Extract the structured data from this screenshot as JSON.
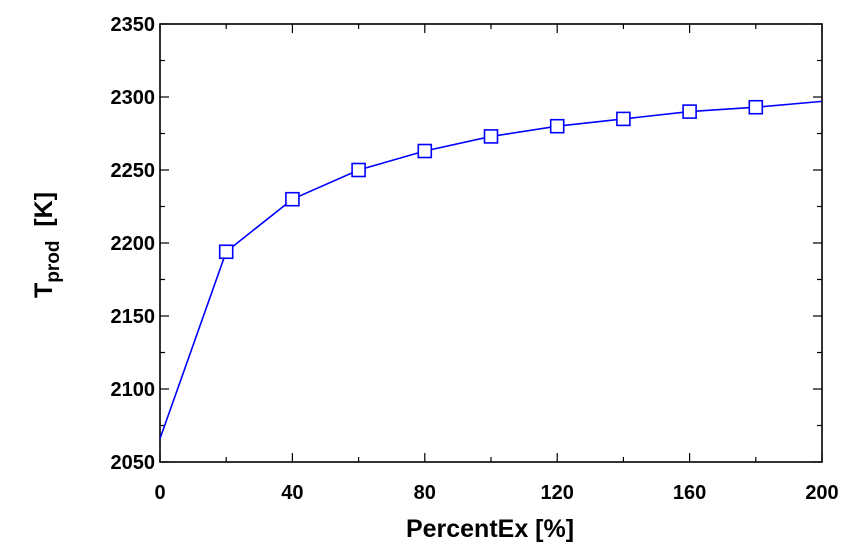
{
  "chart_data": {
    "type": "line",
    "title": "",
    "xlabel": "PercentEx  [%]",
    "ylabel": {
      "main": "T",
      "subscript": "prod",
      "unit": "  [K]"
    },
    "xlim": [
      0,
      200
    ],
    "ylim": [
      2050,
      2350
    ],
    "xticks": [
      0,
      40,
      80,
      120,
      160,
      200
    ],
    "yticks": [
      2050,
      2100,
      2150,
      2200,
      2250,
      2300,
      2350
    ],
    "x_minor_step": 20,
    "y_minor_step": 25,
    "grid": false,
    "legend": "none",
    "series": [
      {
        "color": "#0000ff",
        "marker": "open-square",
        "line": {
          "x": [
            0,
            20,
            40,
            60,
            80,
            100,
            120,
            140,
            160,
            180,
            200
          ],
          "y": [
            2066,
            2194,
            2230,
            2250,
            2263,
            2273,
            2280,
            2285,
            2290,
            2293,
            2297
          ]
        },
        "markers": {
          "x": [
            20,
            40,
            60,
            80,
            100,
            120,
            140,
            160,
            180
          ],
          "y": [
            2194,
            2230,
            2250,
            2263,
            2273,
            2280,
            2285,
            2290,
            2293
          ]
        }
      }
    ]
  }
}
